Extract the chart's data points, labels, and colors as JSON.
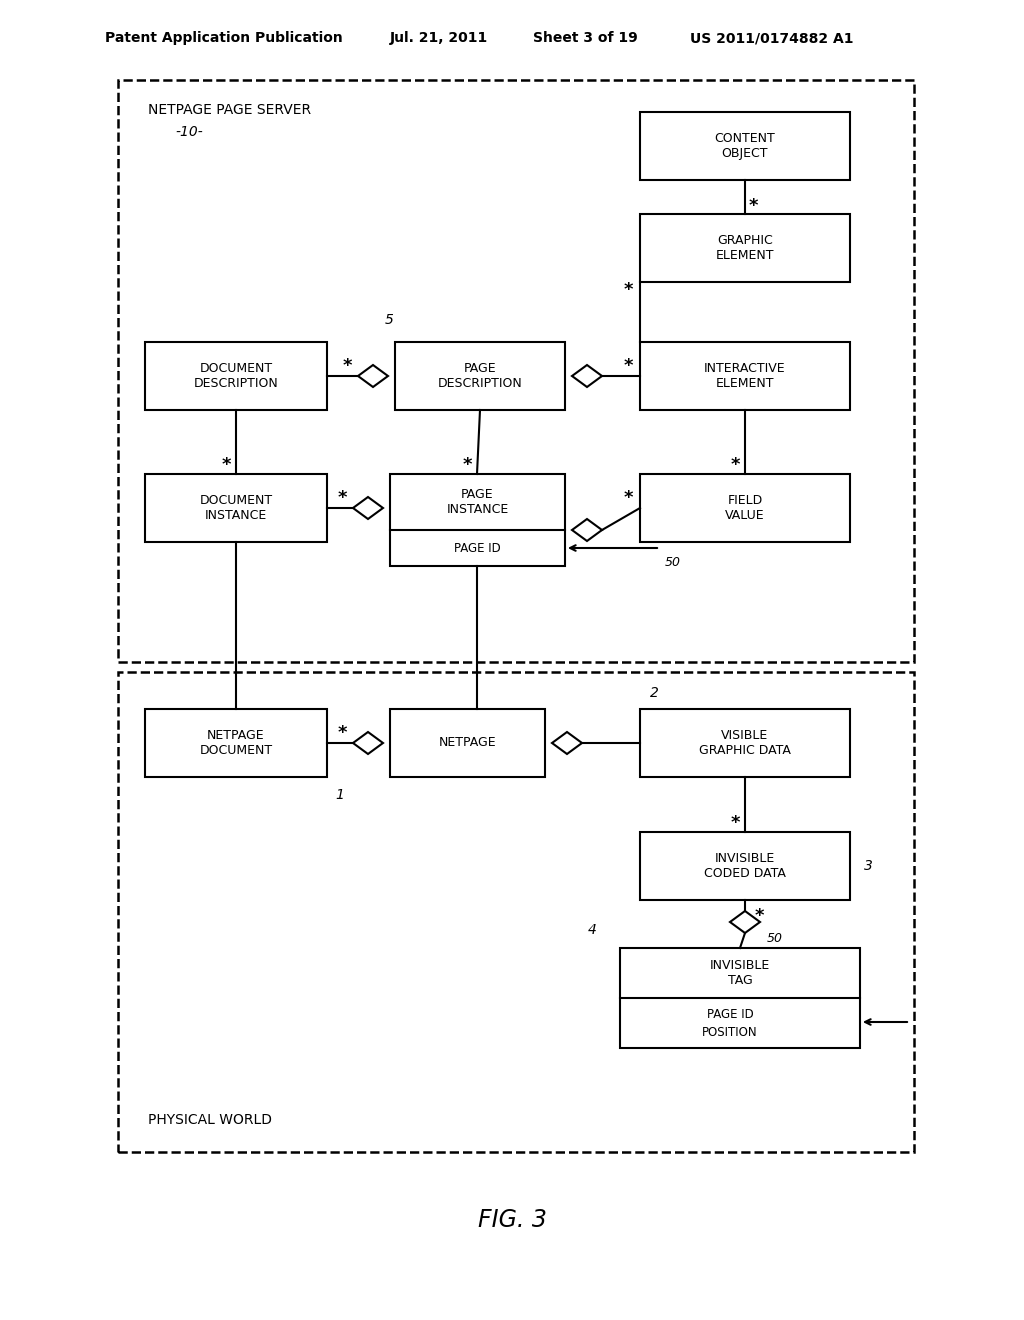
{
  "title_header": "Patent Application Publication",
  "date_header": "Jul. 21, 2011",
  "sheet_header": "Sheet 3 of 19",
  "patent_header": "US 2011/0174882 A1",
  "fig_label": "FIG. 3",
  "background_color": "#ffffff"
}
